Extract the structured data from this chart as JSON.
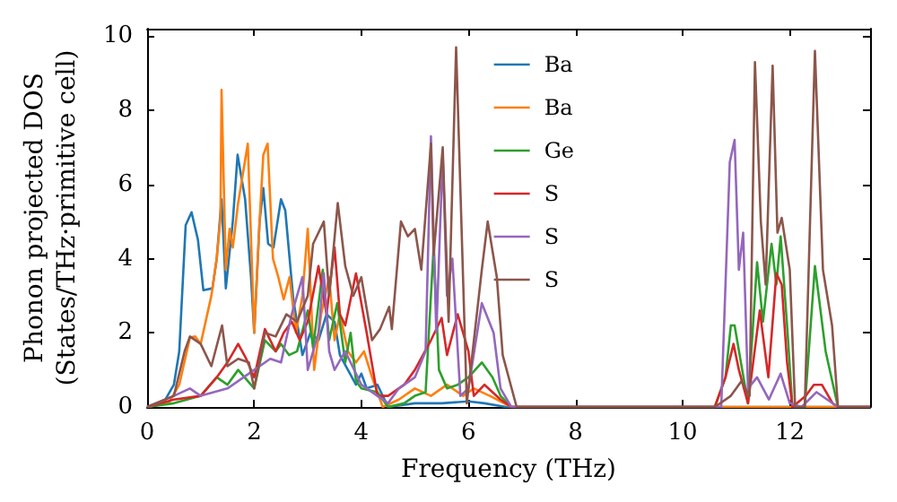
{
  "chart_data": {
    "type": "line",
    "xlabel": "Frequency (THz)",
    "ylabel": "Phonon projected DOS\n(States/THz·primitive cell)",
    "xlim": [
      0,
      13.5
    ],
    "xticks": [
      0,
      2,
      4,
      6,
      8,
      10,
      12
    ],
    "ylim": [
      0,
      10.2
    ],
    "yticks": [
      0,
      2,
      4,
      6,
      8,
      10
    ],
    "grid": false,
    "legend": "top right",
    "marker": "none",
    "line_style": "solid",
    "series": [
      {
        "name": "Ba",
        "color": "#1f77b4",
        "x": [
          0,
          0.3,
          0.5,
          0.6,
          0.72,
          0.83,
          0.95,
          1.05,
          1.22,
          1.3,
          1.39,
          1.47,
          1.6,
          1.69,
          1.83,
          1.94,
          2.0,
          2.1,
          2.17,
          2.26,
          2.36,
          2.5,
          2.58,
          2.73,
          2.9,
          3.05,
          3.2,
          3.35,
          3.5,
          3.6,
          3.75,
          3.9,
          4.0,
          4.1,
          4.3,
          4.5,
          5.0,
          5.5,
          6.0,
          6.3,
          6.7,
          13.5
        ],
        "values": [
          0,
          0.1,
          0.6,
          1.5,
          4.9,
          5.25,
          4.5,
          3.15,
          3.2,
          4.0,
          5.6,
          3.2,
          5.0,
          6.8,
          5.6,
          3.5,
          2.0,
          5.0,
          5.9,
          4.4,
          4.3,
          5.6,
          5.3,
          2.9,
          1.4,
          2.0,
          1.8,
          2.5,
          2.3,
          1.4,
          1.0,
          0.6,
          0.9,
          0.5,
          0.6,
          0,
          0.1,
          0.1,
          0.15,
          0.1,
          0,
          0
        ]
      },
      {
        "name": "Ba",
        "color": "#ff7f0e",
        "x": [
          0,
          0.4,
          0.6,
          0.8,
          0.9,
          1.0,
          1.2,
          1.3,
          1.37,
          1.39,
          1.47,
          1.54,
          1.6,
          1.7,
          1.88,
          2.0,
          2.1,
          2.17,
          2.25,
          2.35,
          2.45,
          2.55,
          2.66,
          2.78,
          2.9,
          3.0,
          3.12,
          3.25,
          3.4,
          3.5,
          3.6,
          3.75,
          3.9,
          4.05,
          4.2,
          4.4,
          4.7,
          5.0,
          5.3,
          5.6,
          5.9,
          6.1,
          6.4,
          6.8,
          13.5
        ],
        "values": [
          0,
          0.1,
          0.6,
          1.87,
          1.9,
          1.7,
          3.0,
          4.0,
          5.1,
          8.55,
          3.7,
          4.8,
          4.3,
          5.5,
          7.1,
          2.0,
          5.0,
          6.8,
          7.1,
          4.0,
          3.5,
          2.9,
          3.5,
          2.0,
          3.0,
          4.8,
          1.0,
          2.5,
          3.5,
          1.8,
          2.5,
          1.5,
          1.2,
          1.5,
          0.8,
          0,
          0.2,
          0.5,
          0.3,
          0.6,
          0.3,
          0.5,
          0.3,
          0,
          0
        ]
      },
      {
        "name": "Ge",
        "color": "#2ca02c",
        "x": [
          0,
          0.5,
          1.0,
          1.3,
          1.5,
          1.7,
          2.0,
          2.2,
          2.4,
          2.5,
          2.65,
          2.8,
          3.0,
          3.1,
          3.28,
          3.4,
          3.55,
          3.7,
          3.8,
          3.9,
          4.0,
          4.3,
          4.5,
          4.8,
          5.0,
          5.2,
          5.35,
          5.45,
          5.6,
          5.8,
          6.0,
          6.25,
          6.45,
          6.6,
          6.8,
          10.6,
          10.8,
          10.9,
          10.97,
          11.1,
          11.22,
          11.39,
          11.5,
          11.66,
          11.75,
          11.83,
          11.95,
          12.05,
          12.28,
          12.47,
          12.67,
          12.9,
          13.5
        ],
        "values": [
          0,
          0.1,
          0.3,
          0.8,
          0.6,
          1.0,
          0.5,
          1.8,
          1.5,
          1.7,
          1.4,
          1.5,
          2.6,
          1.6,
          3.7,
          1.8,
          2.8,
          1.2,
          2.0,
          0.7,
          0.5,
          0.4,
          0,
          0.1,
          0.3,
          0.4,
          4.3,
          1.0,
          0.5,
          0.6,
          0.8,
          1.2,
          0.8,
          0.3,
          0,
          0,
          0.8,
          2.2,
          2.2,
          1.1,
          0.1,
          3.9,
          2.3,
          4.4,
          3.3,
          4.6,
          2.2,
          0,
          0,
          3.8,
          1.5,
          0,
          0
        ]
      },
      {
        "name": "S",
        "color": "#d62728",
        "x": [
          0,
          0.5,
          1.0,
          1.3,
          1.5,
          1.7,
          1.85,
          2.0,
          2.2,
          2.4,
          2.55,
          2.7,
          2.85,
          3.0,
          3.2,
          3.35,
          3.5,
          3.6,
          3.7,
          3.9,
          4.1,
          4.3,
          4.5,
          4.8,
          5.0,
          5.3,
          5.5,
          5.6,
          5.8,
          6.0,
          6.1,
          6.3,
          6.6,
          6.8,
          10.6,
          10.8,
          10.95,
          11.05,
          11.22,
          11.44,
          11.6,
          11.75,
          11.85,
          11.95,
          12.05,
          12.3,
          12.45,
          12.6,
          12.8,
          12.9,
          13.5
        ],
        "values": [
          0,
          0.2,
          0.3,
          0.8,
          1.2,
          1.7,
          1.3,
          0.8,
          2.1,
          1.5,
          2.0,
          2.3,
          1.8,
          2.3,
          3.8,
          2.5,
          4.3,
          2.5,
          2.2,
          3.6,
          2.0,
          0.3,
          0.3,
          0.6,
          1.0,
          1.8,
          2.4,
          1.4,
          2.5,
          1.5,
          0.3,
          0.6,
          0.2,
          0,
          0,
          0.8,
          1.7,
          1.0,
          0.1,
          2.6,
          0.8,
          3.6,
          3.3,
          1.2,
          0,
          0.3,
          0.6,
          0.6,
          0.1,
          0,
          0
        ]
      },
      {
        "name": "S",
        "color": "#9467bd",
        "x": [
          0,
          0.5,
          0.8,
          1.0,
          1.5,
          2.0,
          2.3,
          2.5,
          2.7,
          2.9,
          3.0,
          3.2,
          3.3,
          3.4,
          3.5,
          3.7,
          4.0,
          4.3,
          4.5,
          4.7,
          5.0,
          5.2,
          5.3,
          5.4,
          5.52,
          5.6,
          5.7,
          5.85,
          6.0,
          6.25,
          6.47,
          6.6,
          6.8,
          10.6,
          10.72,
          10.88,
          10.97,
          11.05,
          11.13,
          11.22,
          11.39,
          11.61,
          11.83,
          12.0,
          12.22,
          12.5,
          12.9,
          13.5
        ],
        "values": [
          0,
          0.3,
          0.5,
          0.3,
          0.5,
          1.0,
          1.3,
          1.2,
          2.5,
          3.5,
          1.0,
          2.0,
          3.6,
          1.5,
          1.0,
          1.5,
          0.6,
          0.3,
          0.1,
          0.5,
          0.8,
          1.5,
          7.3,
          2.0,
          6.8,
          3.0,
          4.0,
          0.3,
          0.5,
          2.8,
          2.0,
          0.5,
          0,
          0,
          0,
          6.6,
          7.2,
          3.7,
          4.7,
          0.5,
          0.8,
          0.2,
          0.9,
          0.1,
          0,
          0.4,
          0,
          0
        ]
      },
      {
        "name": "S",
        "color": "#8c564b",
        "x": [
          0,
          0.5,
          0.7,
          0.8,
          1.0,
          1.2,
          1.4,
          1.5,
          1.7,
          1.9,
          2.0,
          2.2,
          2.4,
          2.6,
          2.8,
          3.0,
          3.1,
          3.3,
          3.4,
          3.56,
          3.7,
          3.85,
          4.0,
          4.2,
          4.35,
          4.52,
          4.57,
          4.74,
          4.87,
          5.0,
          5.12,
          5.3,
          5.35,
          5.52,
          5.63,
          5.77,
          5.97,
          6.25,
          6.36,
          6.53,
          6.64,
          6.9,
          10.6,
          10.9,
          11.1,
          11.25,
          11.35,
          11.46,
          11.55,
          11.68,
          11.77,
          11.85,
          12.0,
          12.1,
          12.28,
          12.47,
          12.62,
          12.79,
          12.9,
          13.5
        ],
        "values": [
          0,
          0.3,
          1.5,
          1.9,
          1.7,
          1.1,
          2.2,
          1.1,
          1.3,
          1.2,
          0.5,
          2.0,
          1.9,
          2.5,
          2.3,
          3.0,
          4.4,
          5.0,
          3.0,
          5.5,
          3.8,
          3.0,
          3.5,
          1.8,
          2.1,
          2.7,
          2.1,
          5.0,
          4.6,
          4.8,
          3.7,
          7.1,
          4.1,
          7.0,
          2.3,
          9.7,
          0.1,
          3.7,
          5.0,
          3.5,
          1.4,
          0,
          0,
          0.3,
          0.7,
          0.3,
          9.3,
          5.0,
          3.3,
          9.2,
          4.7,
          5.1,
          3.7,
          0,
          0,
          9.6,
          3.7,
          2.2,
          0,
          0
        ]
      }
    ]
  }
}
